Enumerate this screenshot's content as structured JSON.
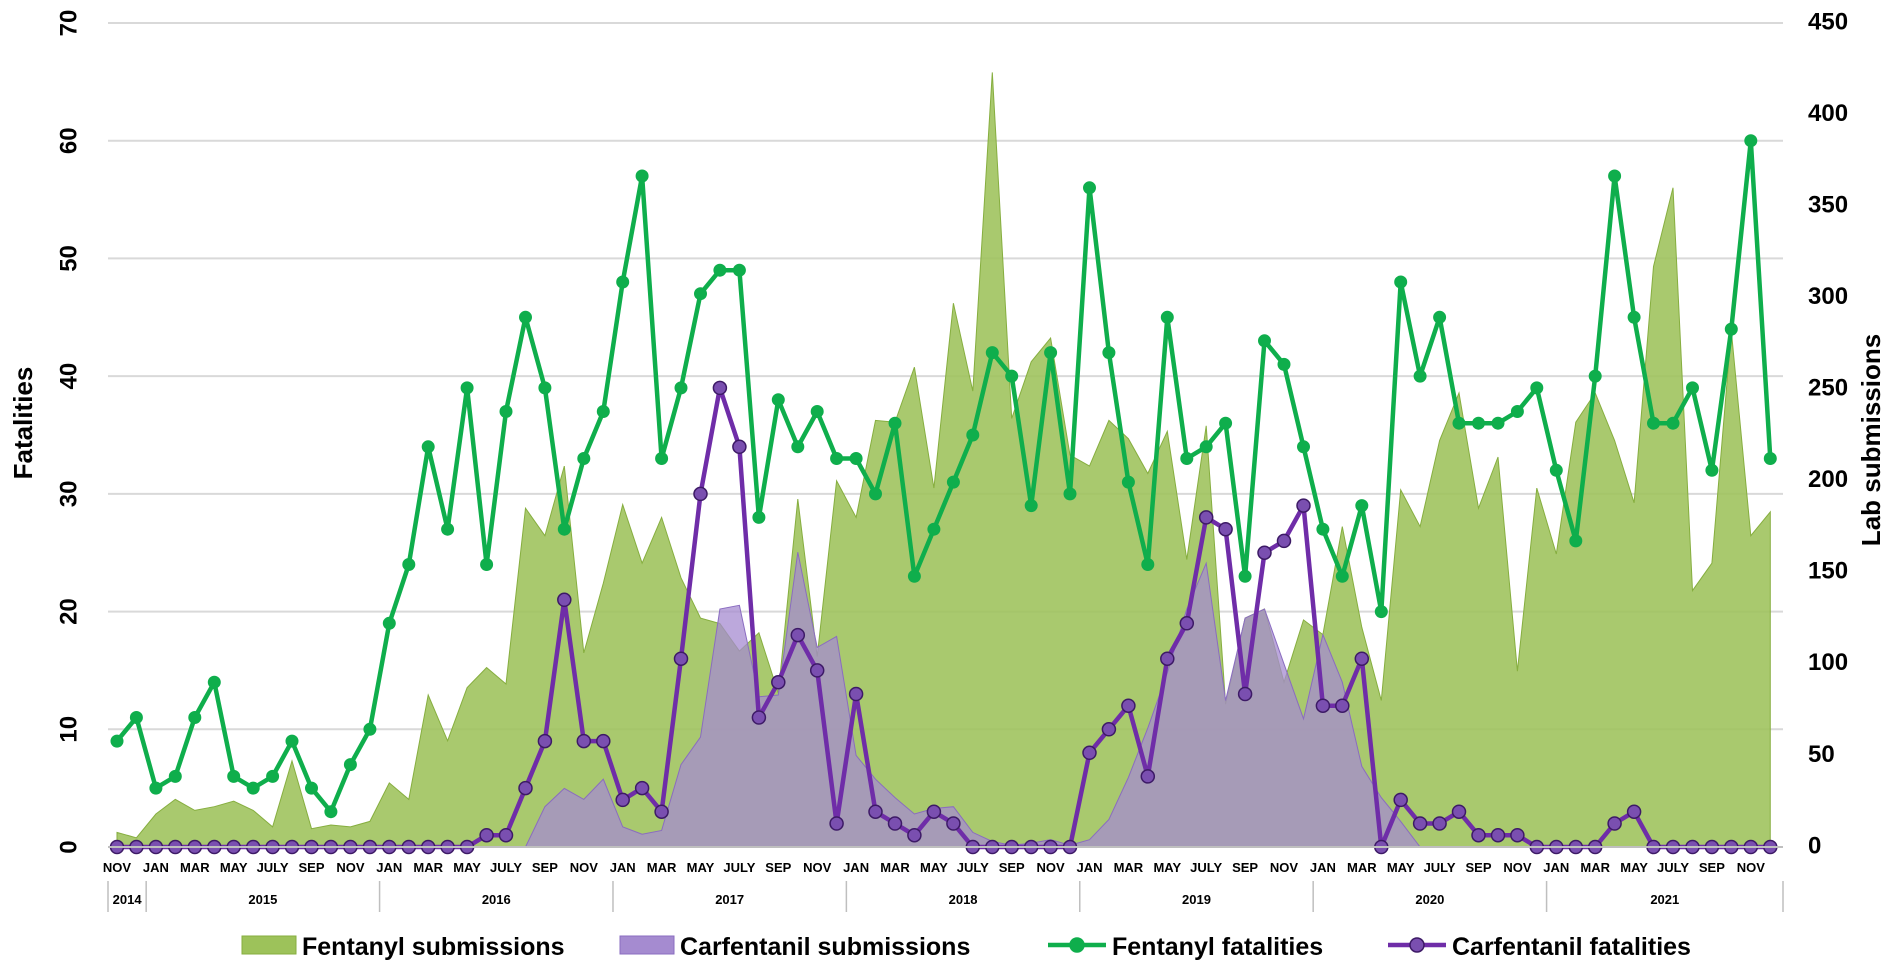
{
  "chart_data": {
    "type": "line",
    "x": [
      "NOV 2014",
      "DEC 2014",
      "JAN 2015",
      "FEB 2015",
      "MAR 2015",
      "APR 2015",
      "MAY 2015",
      "JUN 2015",
      "JULY 2015",
      "AUG 2015",
      "SEP 2015",
      "OCT 2015",
      "NOV 2015",
      "DEC 2015",
      "JAN 2016",
      "FEB 2016",
      "MAR 2016",
      "APR 2016",
      "MAY 2016",
      "JUN 2016",
      "JULY 2016",
      "AUG 2016",
      "SEP 2016",
      "OCT 2016",
      "NOV 2016",
      "DEC 2016",
      "JAN 2017",
      "FEB 2017",
      "MAR 2017",
      "APR 2017",
      "MAY 2017",
      "JUN 2017",
      "JULY 2017",
      "AUG 2017",
      "SEP 2017",
      "OCT 2017",
      "NOV 2017",
      "DEC 2017",
      "JAN 2018",
      "FEB 2018",
      "MAR 2018",
      "APR 2018",
      "MAY 2018",
      "JUN 2018",
      "JULY 2018",
      "AUG 2018",
      "SEP 2018",
      "OCT 2018",
      "NOV 2018",
      "DEC 2018",
      "JAN 2019",
      "FEB 2019",
      "MAR 2019",
      "APR 2019",
      "MAY 2019",
      "JUN 2019",
      "JULY 2019",
      "AUG 2019",
      "SEP 2019",
      "OCT 2019",
      "NOV 2019",
      "DEC 2019",
      "JAN 2020",
      "FEB 2020",
      "MAR 2020",
      "APR 2020",
      "MAY 2020",
      "JUN 2020",
      "JULY 2020",
      "AUG 2020",
      "SEP 2020",
      "OCT 2020",
      "NOV 2020",
      "DEC 2020",
      "JAN 2021",
      "FEB 2021",
      "MAR 2021",
      "APR 2021",
      "MAY 2021",
      "JUN 2021",
      "JULY 2021",
      "AUG 2021",
      "SEP 2021",
      "OCT 2021",
      "NOV 2021",
      "DEC 2021"
    ],
    "x_tick_labels": [
      "NOV",
      "",
      "JAN",
      "",
      "MAR",
      "",
      "MAY",
      "",
      "JULY",
      "",
      "SEP",
      "",
      "NOV",
      "",
      "JAN",
      "",
      "MAR",
      "",
      "MAY",
      "",
      "JULY",
      "",
      "SEP",
      "",
      "NOV",
      "",
      "JAN",
      "",
      "MAR",
      "",
      "MAY",
      "",
      "JULY",
      "",
      "SEP",
      "",
      "NOV",
      "",
      "JAN",
      "",
      "MAR",
      "",
      "MAY",
      "",
      "JULY",
      "",
      "SEP",
      "",
      "NOV",
      "",
      "JAN",
      "",
      "MAR",
      "",
      "MAY",
      "",
      "JULY",
      "",
      "SEP",
      "",
      "NOV",
      "",
      "JAN",
      "",
      "MAR",
      "",
      "MAY",
      "",
      "JULY",
      "",
      "SEP",
      "",
      "NOV",
      "",
      "JAN",
      "",
      "MAR",
      "",
      "MAY",
      "",
      "JULY",
      "",
      "SEP",
      "",
      "NOV",
      ""
    ],
    "years": [
      {
        "label": "2014",
        "start": 0,
        "end": 1
      },
      {
        "label": "2015",
        "start": 2,
        "end": 13
      },
      {
        "label": "2016",
        "start": 14,
        "end": 25
      },
      {
        "label": "2017",
        "start": 26,
        "end": 37
      },
      {
        "label": "2018",
        "start": 38,
        "end": 49
      },
      {
        "label": "2019",
        "start": 50,
        "end": 61
      },
      {
        "label": "2020",
        "start": 62,
        "end": 73
      },
      {
        "label": "2021",
        "start": 74,
        "end": 85
      }
    ],
    "ylabel": "Fatalities",
    "y2label": "Lab submissions",
    "ylim": [
      0,
      70
    ],
    "y2lim": [
      0,
      450
    ],
    "yticks": [
      0,
      10,
      20,
      30,
      40,
      50,
      60,
      70
    ],
    "y2ticks": [
      0,
      50,
      100,
      150,
      200,
      250,
      300,
      350,
      400,
      450
    ],
    "grid": true,
    "legend_position": "bottom",
    "series": [
      {
        "name": "Fentanyl submissions",
        "type": "area",
        "axis": "right",
        "color": "#9dc25a",
        "values": [
          8,
          5,
          18,
          26,
          20,
          22,
          25,
          20,
          11,
          47,
          10,
          12,
          11,
          14,
          35,
          26,
          83,
          58,
          87,
          98,
          89,
          185,
          170,
          208,
          106,
          144,
          187,
          155,
          180,
          147,
          125,
          122,
          107,
          117,
          84,
          190,
          104,
          200,
          180,
          233,
          232,
          262,
          196,
          297,
          249,
          423,
          234,
          265,
          278,
          214,
          208,
          233,
          223,
          204,
          227,
          157,
          230,
          78,
          125,
          130,
          90,
          124,
          116,
          175,
          120,
          80,
          195,
          175,
          222,
          248,
          185,
          213,
          96,
          196,
          160,
          232,
          248,
          222,
          188,
          317,
          360,
          140,
          155,
          282,
          170,
          183
        ]
      },
      {
        "name": "Carfentanil submissions",
        "type": "area",
        "axis": "right",
        "color": "#a58bd0",
        "values": [
          0,
          0,
          0,
          0,
          0,
          0,
          0,
          0,
          0,
          0,
          0,
          0,
          0,
          0,
          0,
          0,
          0,
          0,
          0,
          0,
          0,
          0,
          22,
          32,
          26,
          37,
          11,
          7,
          9,
          45,
          60,
          130,
          132,
          82,
          83,
          161,
          109,
          115,
          50,
          37,
          27,
          18,
          21,
          22,
          8,
          3,
          1,
          2,
          4,
          1,
          4,
          15,
          38,
          65,
          95,
          130,
          155,
          80,
          125,
          130,
          100,
          70,
          116,
          90,
          44,
          27,
          14,
          0,
          0,
          0,
          0,
          0,
          0,
          0,
          0,
          0,
          0,
          0,
          0,
          0,
          0,
          0,
          0,
          0,
          0,
          0
        ]
      },
      {
        "name": "Fentanyl fatalities",
        "type": "line",
        "axis": "left",
        "color": "#0fae4c",
        "values": [
          9,
          11,
          5,
          6,
          11,
          14,
          6,
          5,
          6,
          9,
          5,
          3,
          7,
          10,
          19,
          24,
          34,
          27,
          39,
          24,
          37,
          45,
          39,
          27,
          33,
          37,
          48,
          57,
          33,
          39,
          47,
          49,
          49,
          28,
          38,
          34,
          37,
          33,
          33,
          30,
          36,
          23,
          27,
          31,
          35,
          42,
          40,
          29,
          42,
          30,
          56,
          42,
          31,
          24,
          45,
          33,
          34,
          36,
          23,
          43,
          41,
          34,
          27,
          23,
          29,
          20,
          48,
          40,
          45,
          36,
          36,
          36,
          37,
          39,
          32,
          26,
          40,
          57,
          45,
          36,
          36,
          39,
          32,
          44,
          60,
          33
        ]
      },
      {
        "name": "Carfentanil fatalities",
        "type": "line",
        "axis": "left",
        "color": "#6f2da8",
        "values": [
          0,
          0,
          0,
          0,
          0,
          0,
          0,
          0,
          0,
          0,
          0,
          0,
          0,
          0,
          0,
          0,
          0,
          0,
          0,
          1,
          1,
          5,
          9,
          21,
          9,
          9,
          4,
          5,
          3,
          16,
          30,
          39,
          34,
          11,
          14,
          18,
          15,
          2,
          13,
          3,
          2,
          1,
          3,
          2,
          0,
          0,
          0,
          0,
          0,
          0,
          8,
          10,
          12,
          6,
          16,
          19,
          28,
          27,
          13,
          25,
          26,
          29,
          12,
          12,
          16,
          0,
          4,
          2,
          2,
          3,
          1,
          1,
          1,
          0,
          0,
          0,
          0,
          2,
          3,
          0,
          0,
          0,
          0,
          0,
          0,
          0
        ]
      }
    ]
  }
}
